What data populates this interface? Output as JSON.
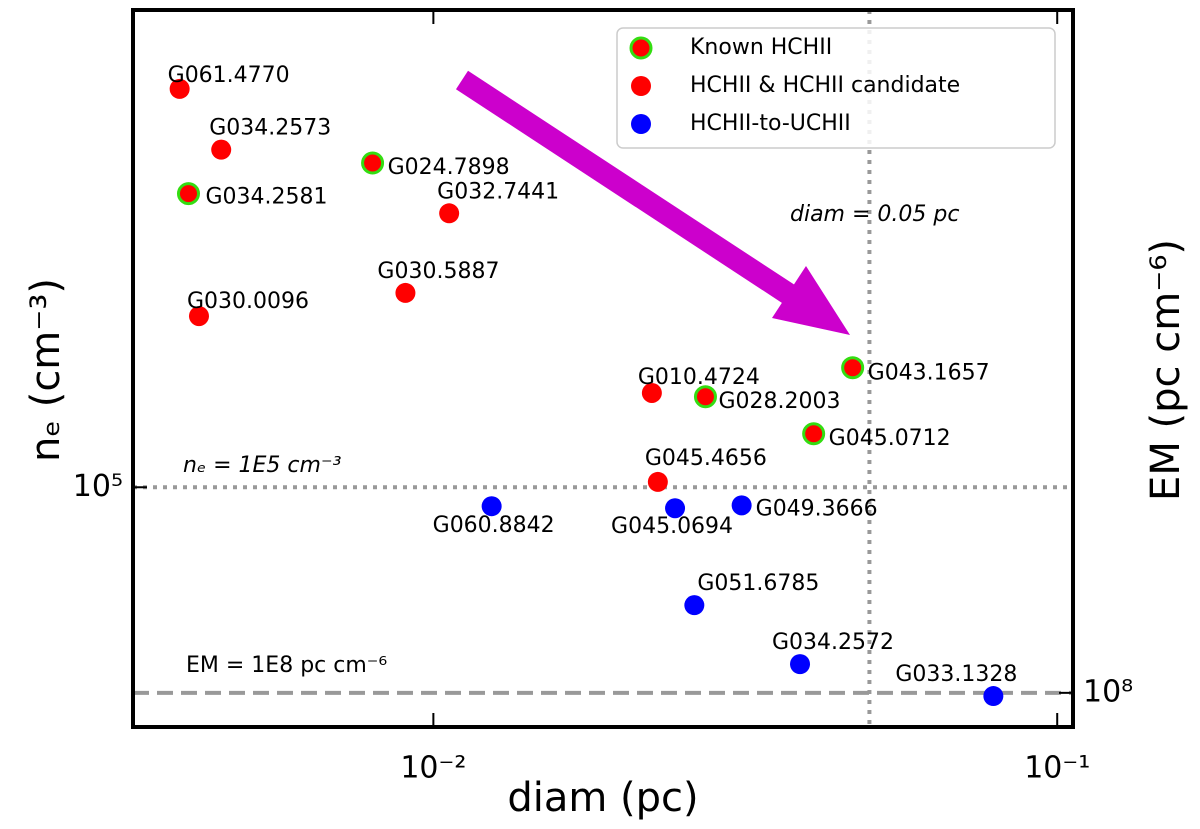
{
  "chart_data": {
    "type": "scatter",
    "xlabel": "diam (pc)",
    "ylabel": "nₑ (cm⁻³)",
    "y2label": "EM (pc cm⁻⁶)",
    "xscale": "log",
    "yscale": "log",
    "y2scale": "log",
    "xlim": [
      0.0033,
      0.106
    ],
    "ylim": [
      41000,
      590000
    ],
    "y2lim": [
      88100000,
      1260000000
    ],
    "xticks": [
      {
        "value": 0.01,
        "label": "10⁻²"
      },
      {
        "value": 0.1,
        "label": "10⁻¹"
      }
    ],
    "yticks": [
      {
        "value": 100000,
        "label": "10⁵"
      }
    ],
    "y2ticks": [
      {
        "value": 100000000,
        "label": "10⁸"
      }
    ],
    "legend": "upper right",
    "series": [
      {
        "name": "Known HCHII",
        "color": "#ff0000",
        "edgecolor": "#33dd11",
        "x": [
          0.00799,
          0.00405,
          0.047,
          0.0273,
          0.0407
        ],
        "values": [
          334000,
          298000,
          156000,
          140000,
          122000
        ],
        "labels": [
          "G024.7898",
          "G034.2581",
          "G043.1657",
          "G028.2003",
          "G045.0712"
        ]
      },
      {
        "name": "HCHII & HCHII candidate",
        "color": "#ff0000",
        "x": [
          0.00392,
          0.00457,
          0.0106,
          0.00902,
          0.00421,
          0.0224,
          0.0229
        ],
        "values": [
          440000,
          351000,
          277000,
          206000,
          189000,
          142000,
          102000
        ],
        "labels": [
          "G061.4770",
          "G034.2573",
          "G032.7441",
          "G030.5887",
          "G030.0096",
          "G010.4724",
          "G045.4656"
        ]
      },
      {
        "name": "HCHII-to-UCHII",
        "color": "#0000ff",
        "x": [
          0.0124,
          0.0244,
          0.0312,
          0.0262,
          0.0387,
          0.079
        ],
        "values": [
          93200,
          92500,
          93500,
          64500,
          51800,
          46000
        ],
        "labels": [
          "G060.8842",
          "G045.0694",
          "G049.3666",
          "G051.6785",
          "G034.2572",
          "G033.1328"
        ]
      }
    ],
    "reference_lines": [
      {
        "axis": "x",
        "value": 0.05,
        "label": "diam = 0.05 pc",
        "style": "dotted"
      },
      {
        "axis": "y",
        "value": 100000,
        "label": "nₑ = 1E5 cm⁻³",
        "style": "dotted"
      },
      {
        "axis": "y2",
        "value": 100000000,
        "label": "EM = 1E8 pc cm⁻⁶",
        "style": "dashed"
      }
    ],
    "arrow_color": "#cc00cc"
  }
}
